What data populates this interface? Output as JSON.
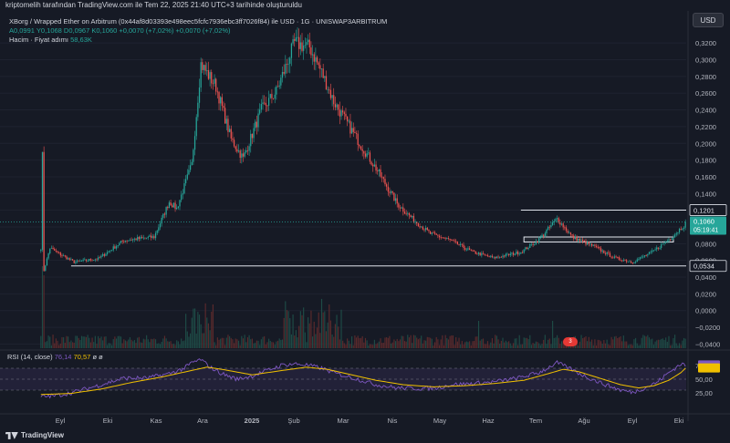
{
  "attribution": "kriptomelih tarafından TradingView.com ile Tem 22, 2025 21:40 UTC+3 tarihinde oluşturuldu",
  "legend": {
    "symbol": "XBorg / Wrapped Ether on Arbitrum (0x44af8d03393e498eec5fcfc7936ebc3ff7026f84) ile USD · 1G · UNISWAP3ARBITRUM",
    "ohlc": "A0,0991  Y0,1068  D0,0967  K0,1060  +0,0070 (+7,02%)  +0,0070 (+7,02%)",
    "volume_label": "Hacim · Fiyat adımı",
    "volume_value": "58,63K"
  },
  "currency_button": "USD",
  "rsi_legend": {
    "label": "RSI (14, close)",
    "rsi": "76,14",
    "ma": "70,57",
    "extra": "ø ø"
  },
  "badge_text": "3",
  "brand": "TradingView",
  "colors": {
    "up": "#26a69a",
    "down": "#ef5350",
    "bg": "#161a25",
    "rsi": "#7e57c2",
    "rsi_ma": "#f0c000",
    "price_tag": "#26a69a"
  },
  "chart_data": {
    "type": "candlestick",
    "price_axis": {
      "ticks": [
        "0,3200",
        "0,3000",
        "0,2800",
        "0,2600",
        "0,2400",
        "0,2200",
        "0,2000",
        "0,1800",
        "0,1600",
        "0,1400",
        "0,1200",
        "0,1000",
        "0,0800",
        "0,0600",
        "0,0400",
        "0,0200",
        "0,0000",
        "−0,0200",
        "−0,0400"
      ],
      "range": [
        -0.045,
        0.33
      ]
    },
    "price_labels": [
      {
        "text": "0,1201",
        "value": 0.1201,
        "style": "outline"
      },
      {
        "text": "0,1060",
        "sub": "05:19:41",
        "value": 0.106,
        "style": "current"
      },
      {
        "text": "0,0534",
        "value": 0.0534,
        "style": "outline"
      }
    ],
    "time_axis": [
      "Eyl",
      "Eki",
      "Kas",
      "Ara",
      "2025",
      "Şub",
      "Mar",
      "Nis",
      "May",
      "Haz",
      "Tem",
      "Ağu",
      "Eyl",
      "Eki"
    ],
    "keypoints": [
      [
        0,
        0.075
      ],
      [
        1,
        0.185
      ],
      [
        2,
        0.048
      ],
      [
        6,
        0.075
      ],
      [
        12,
        0.068
      ],
      [
        22,
        0.058
      ],
      [
        38,
        0.062
      ],
      [
        55,
        0.084
      ],
      [
        75,
        0.088
      ],
      [
        85,
        0.13
      ],
      [
        90,
        0.122
      ],
      [
        100,
        0.175
      ],
      [
        106,
        0.295
      ],
      [
        116,
        0.268
      ],
      [
        126,
        0.205
      ],
      [
        134,
        0.182
      ],
      [
        146,
        0.24
      ],
      [
        156,
        0.262
      ],
      [
        168,
        0.32
      ],
      [
        178,
        0.315
      ],
      [
        186,
        0.285
      ],
      [
        194,
        0.25
      ],
      [
        206,
        0.215
      ],
      [
        222,
        0.17
      ],
      [
        236,
        0.128
      ],
      [
        246,
        0.11
      ],
      [
        258,
        0.092
      ],
      [
        270,
        0.085
      ],
      [
        286,
        0.07
      ],
      [
        300,
        0.063
      ],
      [
        318,
        0.07
      ],
      [
        330,
        0.085
      ],
      [
        342,
        0.11
      ],
      [
        352,
        0.088
      ],
      [
        366,
        0.077
      ],
      [
        380,
        0.063
      ],
      [
        392,
        0.058
      ],
      [
        405,
        0.07
      ],
      [
        418,
        0.088
      ],
      [
        427,
        0.104
      ]
    ],
    "zones": [
      {
        "type": "hline",
        "value": 0.1201,
        "from": 318
      },
      {
        "type": "box",
        "top": 0.088,
        "bottom": 0.082,
        "from": 320
      },
      {
        "type": "hline",
        "value": 0.0534,
        "from": 20
      }
    ],
    "rsi": {
      "ticks": [
        "75,00",
        "50,00",
        "25,00"
      ],
      "bands": [
        70,
        30
      ],
      "range": [
        0,
        100
      ],
      "keypoints": [
        [
          0,
          18
        ],
        [
          10,
          20
        ],
        [
          20,
          25
        ],
        [
          40,
          40
        ],
        [
          55,
          52
        ],
        [
          70,
          52
        ],
        [
          85,
          60
        ],
        [
          95,
          70
        ],
        [
          100,
          80
        ],
        [
          106,
          86
        ],
        [
          112,
          72
        ],
        [
          120,
          60
        ],
        [
          130,
          50
        ],
        [
          140,
          56
        ],
        [
          150,
          66
        ],
        [
          160,
          76
        ],
        [
          168,
          78
        ],
        [
          176,
          76
        ],
        [
          186,
          70
        ],
        [
          196,
          60
        ],
        [
          210,
          50
        ],
        [
          222,
          40
        ],
        [
          236,
          34
        ],
        [
          250,
          33
        ],
        [
          262,
          34
        ],
        [
          272,
          40
        ],
        [
          286,
          42
        ],
        [
          300,
          45
        ],
        [
          316,
          52
        ],
        [
          330,
          62
        ],
        [
          342,
          80
        ],
        [
          350,
          70
        ],
        [
          360,
          56
        ],
        [
          372,
          42
        ],
        [
          384,
          30
        ],
        [
          392,
          26
        ],
        [
          400,
          34
        ],
        [
          408,
          44
        ],
        [
          416,
          62
        ],
        [
          424,
          78
        ],
        [
          427,
          76
        ]
      ],
      "ma_keypoints": [
        [
          0,
          22
        ],
        [
          20,
          24
        ],
        [
          40,
          32
        ],
        [
          60,
          44
        ],
        [
          80,
          54
        ],
        [
          100,
          66
        ],
        [
          110,
          72
        ],
        [
          120,
          68
        ],
        [
          140,
          58
        ],
        [
          160,
          66
        ],
        [
          176,
          72
        ],
        [
          190,
          68
        ],
        [
          206,
          58
        ],
        [
          222,
          48
        ],
        [
          240,
          40
        ],
        [
          260,
          36
        ],
        [
          280,
          38
        ],
        [
          300,
          42
        ],
        [
          320,
          48
        ],
        [
          336,
          60
        ],
        [
          346,
          68
        ],
        [
          356,
          64
        ],
        [
          370,
          52
        ],
        [
          384,
          40
        ],
        [
          396,
          34
        ],
        [
          406,
          38
        ],
        [
          416,
          48
        ],
        [
          424,
          62
        ],
        [
          427,
          70
        ]
      ]
    }
  }
}
